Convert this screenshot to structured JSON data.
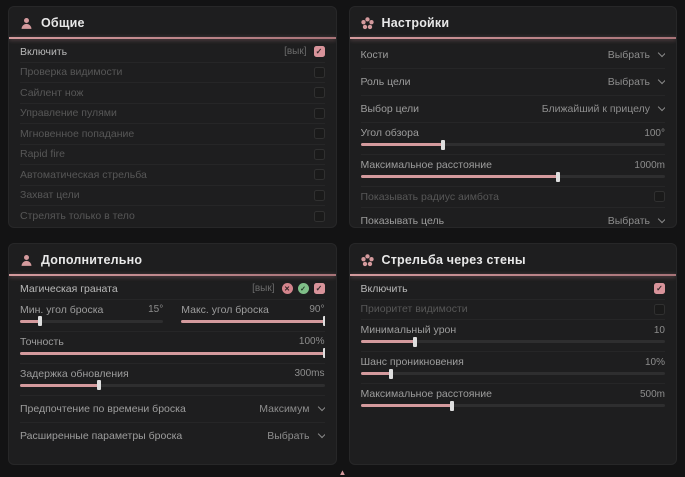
{
  "colors": {
    "accent": "#d49a9d",
    "checkbox_checked": "#d8939a",
    "badge_pink": "#d4848c",
    "badge_green": "#7fbf88"
  },
  "icons": {
    "check": "✓",
    "cross": "✕",
    "up_arrow": "▲"
  },
  "panels": [
    {
      "title": "Общие",
      "icon": "person-icon",
      "rows": [
        {
          "type": "toggle",
          "label": "Включить",
          "hotkey": "[вык]",
          "checked": true,
          "enabled": true
        },
        {
          "type": "toggle",
          "label": "Проверка видимости",
          "checked": false,
          "enabled": false
        },
        {
          "type": "toggle",
          "label": "Сайлент нож",
          "checked": false,
          "enabled": false
        },
        {
          "type": "toggle",
          "label": "Управление пулями",
          "checked": false,
          "enabled": false
        },
        {
          "type": "toggle",
          "label": "Мгновенное попадание",
          "checked": false,
          "enabled": false
        },
        {
          "type": "toggle",
          "label": "Rapid fire",
          "checked": false,
          "enabled": false
        },
        {
          "type": "toggle",
          "label": "Автоматическая стрельба",
          "checked": false,
          "enabled": false
        },
        {
          "type": "toggle",
          "label": "Захват цели",
          "checked": false,
          "enabled": false
        },
        {
          "type": "toggle",
          "label": "Стрелять только в тело",
          "checked": false,
          "enabled": false
        }
      ]
    },
    {
      "title": "Настройки",
      "icon": "flower-icon",
      "rows": [
        {
          "type": "dropdown",
          "label": "Кости",
          "value": "Выбрать"
        },
        {
          "type": "dropdown",
          "label": "Роль цели",
          "value": "Выбрать"
        },
        {
          "type": "dropdown",
          "label": "Выбор цели",
          "value": "Ближайший к прицелу"
        },
        {
          "type": "slider",
          "label": "Угол обзора",
          "value": "100°",
          "fill": 27
        },
        {
          "type": "slider",
          "label": "Максимальное расстояние",
          "value": "1000m",
          "fill": 65
        },
        {
          "type": "toggle",
          "label": "Показывать радиус аимбота",
          "checked": false,
          "enabled": false
        },
        {
          "type": "dropdown",
          "label": "Показывать цель",
          "value": "Выбрать"
        }
      ]
    },
    {
      "title": "Дополнительно",
      "icon": "person-icon",
      "rows": [
        {
          "type": "toggle_badges",
          "label": "Магическая граната",
          "hotkey": "[вык]",
          "checked": true,
          "enabled": true
        },
        {
          "type": "slider_pair",
          "items": [
            {
              "label": "Мин. угол броска",
              "value": "15°",
              "fill": 14
            },
            {
              "label": "Макс. угол броска",
              "value": "90°",
              "fill": 100
            }
          ]
        },
        {
          "type": "slider",
          "label": "Точность",
          "value": "100%",
          "fill": 100
        },
        {
          "type": "slider",
          "label": "Задержка обновления",
          "value": "300ms",
          "fill": 26
        },
        {
          "type": "dropdown",
          "label": "Предпочтение по времени броска",
          "value": "Максимум"
        },
        {
          "type": "dropdown",
          "label": "Расширенные параметры броска",
          "value": "Выбрать"
        }
      ]
    },
    {
      "title": "Стрельба через стены",
      "icon": "flower-icon",
      "rows": [
        {
          "type": "toggle",
          "label": "Включить",
          "checked": true,
          "enabled": true
        },
        {
          "type": "toggle",
          "label": "Приоритет видимости",
          "checked": false,
          "enabled": false
        },
        {
          "type": "slider",
          "label": "Минимальный урон",
          "value": "10",
          "fill": 18
        },
        {
          "type": "slider",
          "label": "Шанс проникновения",
          "value": "10%",
          "fill": 10
        },
        {
          "type": "slider",
          "label": "Максимальное расстояние",
          "value": "500m",
          "fill": 30
        }
      ]
    }
  ]
}
